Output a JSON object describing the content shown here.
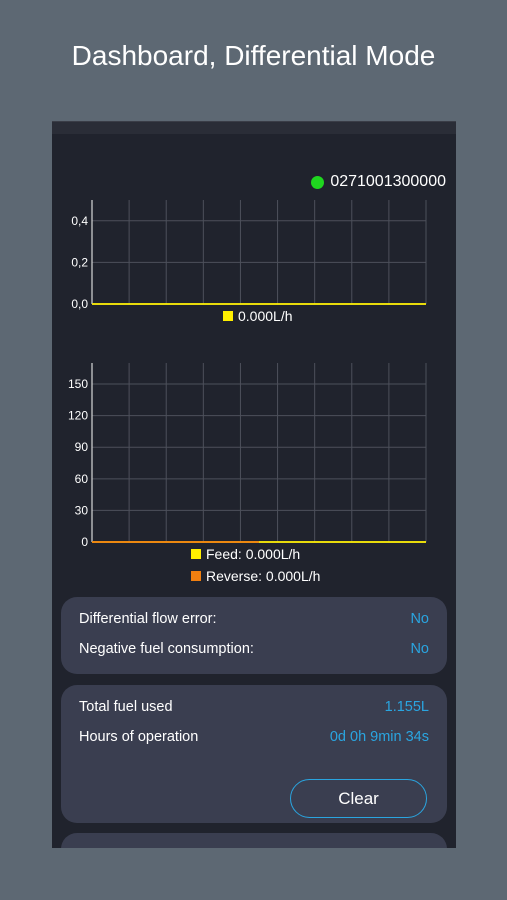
{
  "page_title": "Dashboard, Differential Mode",
  "device": {
    "id": "0271001300000",
    "status_color": "#1fd61f"
  },
  "colors": {
    "feed": "#ffef00",
    "reverse": "#f07f10",
    "value": "#2aa5e0",
    "card": "#3a3e50"
  },
  "chart_data": [
    {
      "type": "line",
      "y_ticks": [
        "0,0",
        "0,2",
        "0,4"
      ],
      "ylim": [
        0,
        0.5
      ],
      "series": [
        {
          "name": "0.000L/h",
          "values": [
            0,
            0,
            0,
            0,
            0,
            0,
            0,
            0,
            0,
            0
          ]
        }
      ],
      "grid": true
    },
    {
      "type": "line",
      "y_ticks": [
        "0",
        "30",
        "60",
        "90",
        "120",
        "150"
      ],
      "ylim": [
        0,
        170
      ],
      "series": [
        {
          "name": "Feed: 0.000L/h",
          "values": [
            0,
            0,
            0,
            0,
            0,
            0,
            0,
            0,
            0,
            0
          ]
        },
        {
          "name": "Reverse: 0.000L/h",
          "values": [
            0,
            0,
            0,
            0,
            0
          ]
        }
      ],
      "grid": true
    }
  ],
  "status_card": {
    "rows": [
      {
        "label": "Differential flow error:",
        "value": "No"
      },
      {
        "label": "Negative fuel consumption:",
        "value": "No"
      }
    ]
  },
  "totals_card": {
    "rows": [
      {
        "label": "Total fuel used",
        "value": "1.155L"
      },
      {
        "label": "Hours of operation",
        "value": "0d 0h 9min 34s"
      }
    ],
    "clear_label": "Clear"
  }
}
